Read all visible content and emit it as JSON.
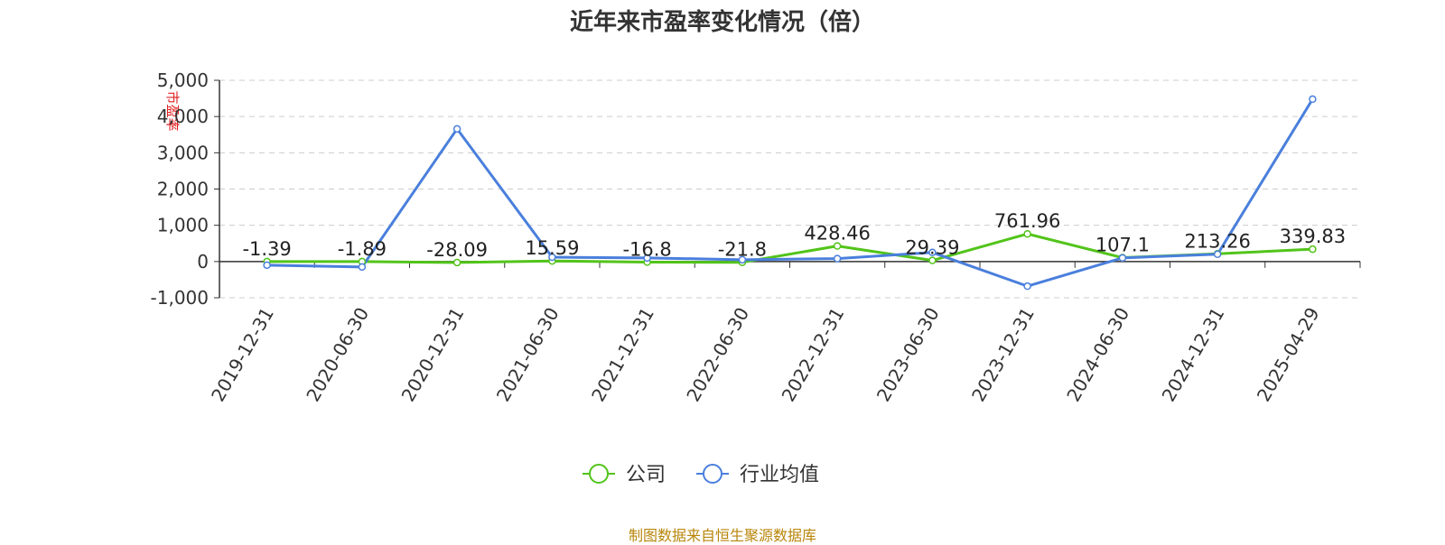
{
  "title": "近年来市盈率变化情况（倍）",
  "watermark": "市盈率",
  "source_note": "制图数据来自恒生聚源数据库",
  "colors": {
    "company": "#52c41a",
    "industry": "#4a7fdc"
  },
  "chart_data": {
    "type": "line",
    "title": "近年来市盈率变化情况（倍）",
    "xlabel": "",
    "ylabel": "",
    "ylim": [
      -1000,
      5000
    ],
    "yticks": [
      -1000,
      0,
      1000,
      2000,
      3000,
      4000,
      5000
    ],
    "ytick_labels": [
      "-1,000",
      "0",
      "1,000",
      "2,000",
      "3,000",
      "4,000",
      "5,000"
    ],
    "grid": true,
    "legend_position": "bottom",
    "categories": [
      "2019-12-31",
      "2020-06-30",
      "2020-12-31",
      "2021-06-30",
      "2021-12-31",
      "2022-06-30",
      "2022-12-31",
      "2023-06-30",
      "2023-12-31",
      "2024-06-30",
      "2024-12-31",
      "2025-04-29"
    ],
    "series": [
      {
        "name": "公司",
        "key": "company",
        "values": [
          -1.39,
          -1.89,
          -28.09,
          15.59,
          -16.8,
          -21.8,
          428.46,
          29.39,
          761.96,
          107.1,
          213.26,
          339.83
        ],
        "labels": [
          "-1.39",
          "-1.89",
          "-28.09",
          "15.59",
          "-16.8",
          "-21.8",
          "428.46",
          "29.39",
          "761.96",
          "107.1",
          "213.26",
          "339.83"
        ]
      },
      {
        "name": "行业均值",
        "key": "industry",
        "values": [
          -100,
          -150,
          3660,
          120,
          100,
          50,
          80,
          250,
          -680,
          100,
          200,
          4480
        ]
      }
    ]
  }
}
